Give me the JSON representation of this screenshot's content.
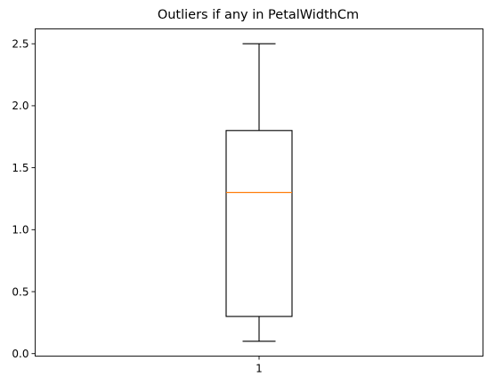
{
  "chart_data": {
    "type": "box",
    "title": "Outliers if any in PetalWidthCm",
    "xlabel": "",
    "ylabel": "",
    "categories": [
      "1"
    ],
    "ylim": [
      -0.02,
      2.62
    ],
    "yticks": [
      0.0,
      0.5,
      1.0,
      1.5,
      2.0,
      2.5
    ],
    "ytick_labels": [
      "0.0",
      "0.5",
      "1.0",
      "1.5",
      "2.0",
      "2.5"
    ],
    "boxes": [
      {
        "label": "1",
        "whisker_low": 0.1,
        "q1": 0.3,
        "median": 1.3,
        "q3": 1.8,
        "whisker_high": 2.5,
        "outliers": []
      }
    ],
    "grid": false,
    "colors": {
      "box": "#000000",
      "median": "#ff7f0e",
      "axes": "#000000"
    }
  }
}
